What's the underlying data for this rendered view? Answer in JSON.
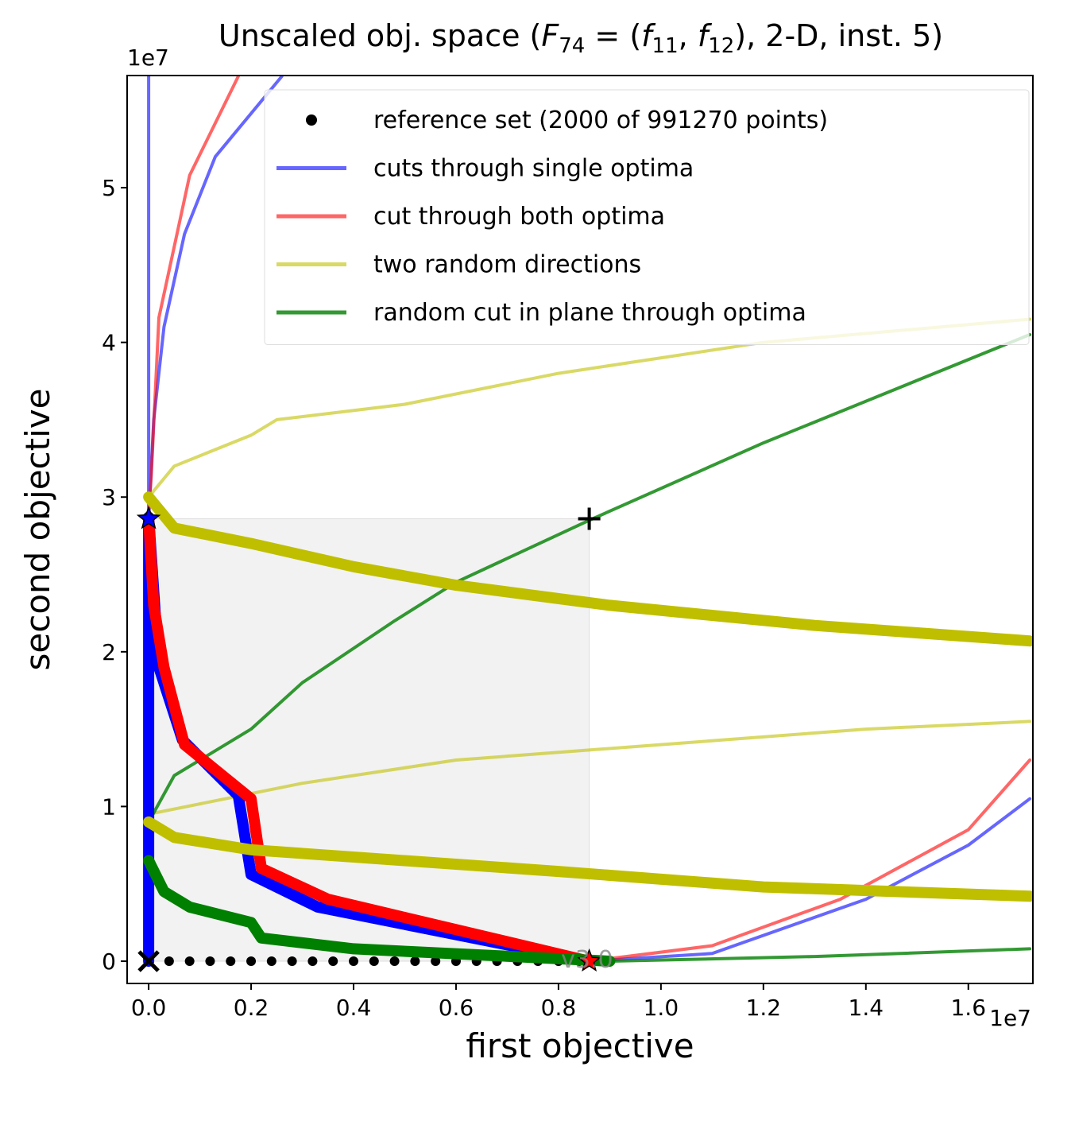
{
  "chart_data": {
    "type": "line",
    "title": [
      "Unscaled obj. space (",
      "F",
      "74",
      " = (",
      "f",
      "11",
      ", ",
      "f",
      "12",
      "), 2-D, inst. 5)"
    ],
    "x_label": "first objective",
    "y_label": "second objective",
    "x_offset": "1e7",
    "y_offset": "1e7",
    "xlim": [
      -0.042,
      1.726
    ],
    "ylim": [
      -0.144,
      5.725
    ],
    "xticks": [
      {
        "value": 0,
        "label": "0.0"
      },
      0.2,
      0.4,
      0.6,
      0.8,
      {
        "value": 1,
        "label": "1.0"
      },
      1.2,
      1.4,
      1.6
    ],
    "yticks": [
      0,
      1,
      2,
      3,
      4,
      5
    ],
    "legend": "upper right",
    "region": {
      "x": [
        0,
        0.86
      ],
      "y": [
        0,
        2.86
      ],
      "color": "#f2f2f2"
    },
    "series": [
      {
        "name": "reference set (2000 of 991270 points)",
        "color": "#000000",
        "style": "points",
        "x": [
          0,
          0.04,
          0.08,
          0.12,
          0.16,
          0.2,
          0.24,
          0.28,
          0.32,
          0.36,
          0.4,
          0.44,
          0.48,
          0.52,
          0.56,
          0.6,
          0.64,
          0.68,
          0.72,
          0.76,
          0.8,
          0.84
        ],
        "values": [
          0,
          0,
          0,
          0,
          0,
          0,
          0,
          0,
          0,
          0,
          0,
          0,
          0,
          0,
          0,
          0,
          0,
          0,
          0,
          0,
          0,
          0
        ]
      },
      {
        "name": "cuts through single optima",
        "color": "#0000ff",
        "opacity": 0.6,
        "width": 4,
        "x": [
          0,
          0,
          0,
          null,
          0,
          0.01,
          0.03,
          0.07,
          0.13,
          0.26,
          null,
          0.86,
          1.1,
          1.4,
          1.6,
          1.72
        ],
        "values": [
          5.72,
          4.0,
          2.86,
          null,
          2.86,
          3.5,
          4.1,
          4.7,
          5.2,
          5.72,
          null,
          0,
          0.05,
          0.4,
          0.75,
          1.05
        ]
      },
      {
        "name": "cut through both optima",
        "color": "#ff0000",
        "opacity": 0.6,
        "width": 4,
        "x": [
          0,
          0.005,
          0.02,
          0.08,
          0.175,
          null,
          0.86,
          1.1,
          1.35,
          1.6,
          1.72
        ],
        "values": [
          2.9,
          3.13,
          4.16,
          5.08,
          5.72,
          null,
          0,
          0.1,
          0.4,
          0.85,
          1.3
        ]
      },
      {
        "name": "two random directions",
        "color": "#bfbf00",
        "opacity": 0.6,
        "width": 4,
        "x": [
          0,
          0.05,
          0.2,
          0.25,
          0.5,
          0.8,
          1.2,
          1.72,
          null,
          0,
          0.3,
          0.6,
          1.0,
          1.4,
          1.72
        ],
        "values": [
          3.0,
          3.2,
          3.4,
          3.5,
          3.6,
          3.8,
          4.0,
          4.15,
          null,
          0.95,
          1.15,
          1.3,
          1.4,
          1.5,
          1.55
        ]
      },
      {
        "name": "random cut in plane through optima",
        "color": "#008000",
        "opacity": 0.8,
        "width": 4,
        "x": [
          0,
          0.05,
          0.2,
          0.3,
          0.48,
          0.6,
          0.86,
          1.2,
          1.72,
          null,
          0.9,
          1.3,
          1.72
        ],
        "values": [
          0.9,
          1.2,
          1.5,
          1.8,
          2.2,
          2.45,
          2.85,
          3.35,
          4.05,
          null,
          0,
          0.03,
          0.08
        ]
      },
      {
        "color": "#0000ff",
        "opacity": 1,
        "width": 14,
        "x": [
          0,
          0,
          null,
          0,
          0.02,
          0.066,
          0.175,
          0.2,
          0.33,
          0.86
        ],
        "values": [
          2.86,
          0,
          null,
          2.87,
          1.9,
          1.43,
          1.07,
          0.56,
          0.35,
          0
        ]
      },
      {
        "color": "#ff0000",
        "opacity": 1,
        "width": 14,
        "x": [
          0,
          0.01,
          0.03,
          0.07,
          0.2,
          0.22,
          0.35,
          0.86
        ],
        "values": [
          2.86,
          2.3,
          1.9,
          1.4,
          1.05,
          0.6,
          0.4,
          0
        ]
      },
      {
        "color": "#bfbf00",
        "opacity": 1,
        "width": 14,
        "x": [
          0,
          0.05,
          0.2,
          0.4,
          0.6,
          0.9,
          1.3,
          1.72,
          null,
          0,
          0.05,
          0.2,
          0.5,
          0.8,
          1.2,
          1.72
        ],
        "values": [
          3.0,
          2.8,
          2.7,
          2.55,
          2.43,
          2.3,
          2.17,
          2.07,
          null,
          0.9,
          0.8,
          0.72,
          0.65,
          0.58,
          0.48,
          0.42
        ]
      },
      {
        "color": "#008000",
        "opacity": 1,
        "width": 14,
        "x": [
          0,
          0.03,
          0.08,
          0.2,
          0.22,
          0.4,
          0.9
        ],
        "values": [
          0.65,
          0.45,
          0.35,
          0.25,
          0.15,
          0.08,
          0
        ]
      }
    ],
    "markers": [
      {
        "x": 0,
        "y": 2.86,
        "symbol": "star",
        "color": "#0000ff"
      },
      {
        "x": 0.86,
        "y": 0,
        "symbol": "star",
        "color": "#ff0000"
      },
      {
        "x": 0.86,
        "y": 2.86,
        "symbol": "plus",
        "color": "#000000"
      },
      {
        "x": 0,
        "y": 0,
        "symbol": "cross",
        "color": "#000000"
      }
    ],
    "annotation": {
      "text": "v3.0",
      "x": 0.86,
      "y": 0
    }
  }
}
